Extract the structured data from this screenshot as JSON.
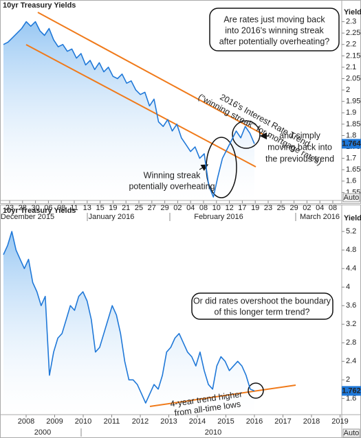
{
  "chart_data": [
    {
      "type": "line",
      "title": "10yr Treasury Yields",
      "ylabel": "Yield",
      "ylim": [
        1.515,
        2.35
      ],
      "yticks": [
        1.55,
        1.6,
        1.65,
        1.7,
        1.75,
        1.8,
        1.85,
        1.9,
        1.95,
        2,
        2.05,
        2.1,
        2.15,
        2.2,
        2.25,
        2.3
      ],
      "x_axis_labels": [
        "23",
        "28",
        "30",
        "06",
        "08",
        "11",
        "13",
        "15",
        "19",
        "21",
        "25",
        "27",
        "29",
        "02",
        "04",
        "08",
        "10",
        "12",
        "17",
        "19",
        "23",
        "25",
        "29",
        "02",
        "04",
        "08"
      ],
      "x_period_labels": [
        "December 2015",
        "January 2016",
        "February 2016",
        "March 2016"
      ],
      "scale_mode": "Auto",
      "current_value": 1.764,
      "color": "#1f78d8",
      "values": [
        2.2,
        2.21,
        2.23,
        2.25,
        2.27,
        2.3,
        2.28,
        2.3,
        2.26,
        2.24,
        2.27,
        2.22,
        2.19,
        2.2,
        2.17,
        2.18,
        2.14,
        2.16,
        2.11,
        2.13,
        2.09,
        2.12,
        2.08,
        2.1,
        2.06,
        2.05,
        2.07,
        2.03,
        2.04,
        2.0,
        1.98,
        1.99,
        1.93,
        1.96,
        1.86,
        1.84,
        1.87,
        1.82,
        1.85,
        1.79,
        1.76,
        1.73,
        1.75,
        1.7,
        1.72,
        1.58,
        1.53,
        1.62,
        1.7,
        1.74,
        1.78,
        1.82,
        1.79,
        1.84,
        1.81,
        1.764
      ],
      "annotations": [
        {
          "lines": [
            "Are rates just moving back",
            "into 2016's winning streak",
            "after potentially overheating?"
          ]
        },
        {
          "lines": [
            "2016's Interest Rate Trend",
            "(\"winning streak\" for mortgage rates)"
          ]
        },
        {
          "lines": [
            "Winning streak",
            "potentially overheating"
          ]
        },
        {
          "lines": [
            "and simply",
            "moving back into",
            "the previous trend"
          ]
        }
      ]
    },
    {
      "type": "line",
      "title": "10yr Treasury Yields",
      "ylabel": "Yield",
      "ylim": [
        1.25,
        5.75
      ],
      "yticks": [
        1.6,
        2,
        2.4,
        2.8,
        3.2,
        3.6,
        4,
        4.4,
        4.8,
        5.2
      ],
      "x_axis_labels": [
        "2008",
        "2009",
        "2010",
        "2011",
        "2012",
        "2013",
        "2014",
        "2015",
        "2016",
        "2017",
        "2018",
        "2019"
      ],
      "x_period_labels": [
        "2000",
        "2010"
      ],
      "scale_mode": "Auto",
      "current_value": 1.762,
      "color": "#1f78d8",
      "values": [
        4.7,
        4.9,
        5.2,
        4.8,
        4.6,
        4.4,
        4.6,
        4.1,
        3.9,
        3.6,
        3.8,
        2.1,
        2.6,
        2.9,
        3.0,
        3.3,
        3.6,
        3.5,
        3.8,
        3.9,
        3.7,
        3.3,
        2.6,
        2.7,
        3.0,
        3.3,
        3.6,
        3.4,
        3.0,
        2.4,
        2.0,
        2.0,
        1.9,
        1.7,
        1.5,
        1.7,
        1.9,
        1.8,
        2.1,
        2.6,
        2.7,
        2.9,
        3.0,
        2.8,
        2.6,
        2.5,
        2.3,
        2.6,
        2.2,
        1.9,
        1.8,
        2.3,
        2.5,
        2.4,
        2.2,
        2.3,
        2.4,
        2.3,
        2.1,
        1.8,
        1.762
      ],
      "annotations": [
        {
          "lines": [
            "Or did rates overshoot the boundary",
            "of this longer term trend?"
          ]
        },
        {
          "lines": [
            "4-year trend higher",
            "from all-time lows"
          ]
        }
      ]
    }
  ]
}
